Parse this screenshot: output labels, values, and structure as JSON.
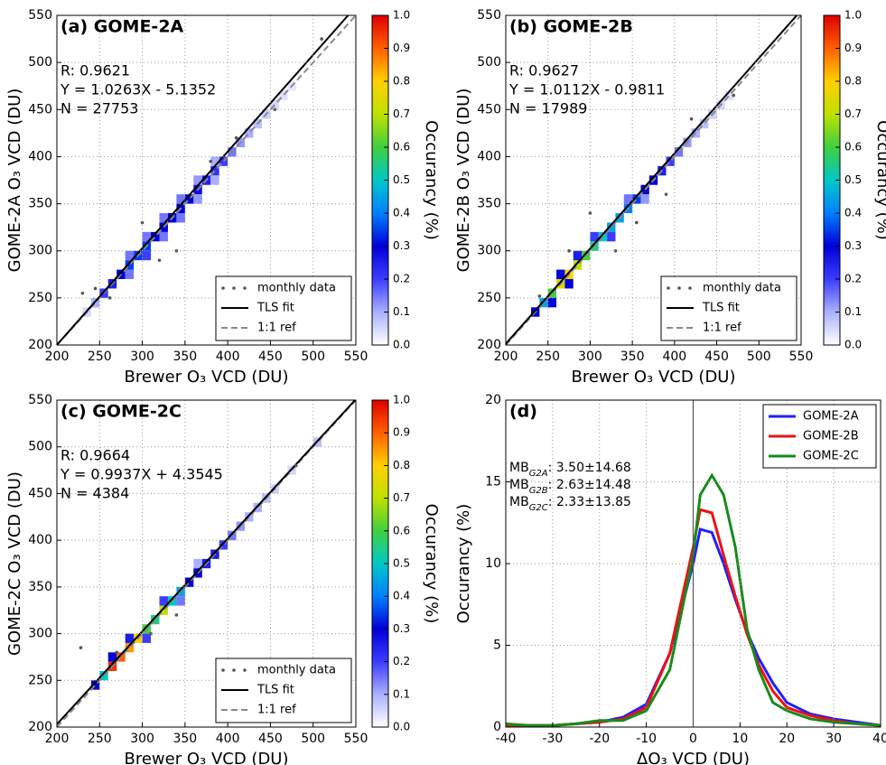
{
  "chart_data": [
    {
      "type": "density",
      "title": "(a) GOME-2A",
      "annotations": [
        "R: 0.9621",
        "Y = 1.0263X - 5.1352",
        "N = 27753"
      ],
      "xlabel": "Brewer O₃ VCD (DU)",
      "ylabel": "GOME-2A O₃ VCD (DU)",
      "xlim": [
        200,
        550
      ],
      "ylim": [
        200,
        550
      ],
      "xticks": [
        200,
        250,
        300,
        350,
        400,
        450,
        500,
        550
      ],
      "yticks": [
        200,
        250,
        300,
        350,
        400,
        450,
        500,
        550
      ],
      "grid": true,
      "legend": "lower right",
      "density": {
        "x": [
          235,
          245,
          255,
          265,
          275,
          285,
          295,
          305,
          315,
          325,
          335,
          345,
          355,
          365,
          375,
          385,
          395,
          405,
          415,
          425,
          435,
          445,
          455,
          465,
          475,
          285,
          285,
          305,
          305,
          325,
          325,
          345,
          345,
          365,
          365,
          385,
          385
        ],
        "y": [
          235,
          245,
          255,
          265,
          275,
          285,
          295,
          305,
          315,
          325,
          335,
          345,
          355,
          365,
          375,
          385,
          395,
          405,
          415,
          425,
          435,
          445,
          455,
          465,
          475,
          275,
          295,
          295,
          315,
          315,
          335,
          335,
          355,
          355,
          375,
          375,
          395
        ],
        "values": [
          0.05,
          0.1,
          0.2,
          0.25,
          0.3,
          0.35,
          0.35,
          0.35,
          0.3,
          0.3,
          0.3,
          0.3,
          0.3,
          0.28,
          0.25,
          0.22,
          0.2,
          0.15,
          0.12,
          0.1,
          0.08,
          0.06,
          0.05,
          0.04,
          0.03,
          0.15,
          0.15,
          0.2,
          0.15,
          0.15,
          0.15,
          0.15,
          0.15,
          0.12,
          0.12,
          0.1,
          0.1
        ]
      },
      "series": [
        {
          "name": "monthly data",
          "color": "#555555",
          "x": [
            245,
            262,
            300,
            320,
            380,
            410,
            455,
            510,
            230,
            340
          ],
          "values": [
            260,
            250,
            330,
            290,
            395,
            420,
            450,
            525,
            255,
            300
          ]
        },
        {
          "name": "TLS fit",
          "color": "#000000",
          "slope": 1.0263,
          "intercept": -5.1352
        },
        {
          "name": "1:1 ref",
          "color": "#888888"
        }
      ],
      "colorbar": {
        "label": "Occurancy (%)",
        "lim": [
          0,
          1
        ],
        "ticks": [
          {
            "value": 0,
            "label": "0.0"
          },
          0.1,
          0.2,
          0.3,
          0.4,
          0.5,
          0.6,
          0.7,
          0.8,
          0.9,
          {
            "value": 1,
            "label": "1.0"
          }
        ],
        "colors": [
          "#ffffff",
          "#aab0ff",
          "#3c3cff",
          "#0000d8",
          "#0080ff",
          "#00c8c8",
          "#40d040",
          "#c0e000",
          "#ffd000",
          "#ff6000",
          "#e00000"
        ]
      }
    },
    {
      "type": "density",
      "title": "(b) GOME-2B",
      "annotations": [
        "R: 0.9627",
        "Y = 1.0112X - 0.9811",
        "N = 17989"
      ],
      "xlabel": "Brewer O₃ VCD (DU)",
      "ylabel": "GOME-2B O₃ VCD (DU)",
      "xlim": [
        200,
        550
      ],
      "ylim": [
        200,
        550
      ],
      "xticks": [
        200,
        250,
        300,
        350,
        400,
        450,
        500,
        550
      ],
      "yticks": [
        200,
        250,
        300,
        350,
        400,
        450,
        500,
        550
      ],
      "grid": true,
      "legend": "lower right",
      "density": {
        "x": [
          235,
          245,
          255,
          265,
          275,
          285,
          295,
          305,
          315,
          325,
          335,
          345,
          355,
          365,
          375,
          385,
          395,
          405,
          415,
          425,
          435,
          445,
          455,
          465,
          255,
          265,
          275,
          285,
          305,
          325,
          345,
          365
        ],
        "y": [
          235,
          245,
          255,
          265,
          275,
          285,
          295,
          305,
          315,
          325,
          335,
          345,
          355,
          365,
          375,
          385,
          395,
          405,
          415,
          425,
          435,
          445,
          455,
          465,
          245,
          275,
          265,
          295,
          315,
          315,
          355,
          355
        ],
        "values": [
          0.3,
          0.45,
          0.6,
          0.75,
          0.8,
          0.7,
          0.6,
          0.55,
          0.5,
          0.45,
          0.45,
          0.4,
          0.35,
          0.3,
          0.3,
          0.25,
          0.2,
          0.15,
          0.12,
          0.1,
          0.08,
          0.06,
          0.05,
          0.04,
          0.3,
          0.3,
          0.3,
          0.25,
          0.2,
          0.2,
          0.15,
          0.12
        ]
      },
      "series": [
        {
          "name": "monthly data",
          "color": "#555555",
          "x": [
            240,
            275,
            300,
            330,
            355,
            390,
            420,
            470
          ],
          "values": [
            252,
            300,
            340,
            300,
            330,
            360,
            440,
            465
          ]
        },
        {
          "name": "TLS fit",
          "color": "#000000",
          "slope": 1.0112,
          "intercept": -0.9811
        },
        {
          "name": "1:1 ref",
          "color": "#888888"
        }
      ],
      "colorbar": {
        "label": "Occurancy (%)",
        "lim": [
          0,
          1
        ],
        "ticks": [
          {
            "value": 0,
            "label": "0.0"
          },
          0.1,
          0.2,
          0.3,
          0.4,
          0.5,
          0.6,
          0.7,
          0.8,
          0.9,
          {
            "value": 1,
            "label": "1.0"
          }
        ],
        "colors": [
          "#ffffff",
          "#aab0ff",
          "#3c3cff",
          "#0000d8",
          "#0080ff",
          "#00c8c8",
          "#40d040",
          "#c0e000",
          "#ffd000",
          "#ff6000",
          "#e00000"
        ]
      }
    },
    {
      "type": "density",
      "title": "(c) GOME-2C",
      "annotations": [
        "R: 0.9664",
        "Y = 0.9937X + 4.3545",
        "N = 4384"
      ],
      "xlabel": "Brewer O₃ VCD (DU)",
      "ylabel": "GOME-2C O₃ VCD (DU)",
      "xlim": [
        200,
        550
      ],
      "ylim": [
        200,
        550
      ],
      "xticks": [
        200,
        250,
        300,
        350,
        400,
        450,
        500,
        550
      ],
      "yticks": [
        200,
        250,
        300,
        350,
        400,
        450,
        500,
        550
      ],
      "grid": true,
      "legend": "lower right",
      "density": {
        "x": [
          245,
          255,
          265,
          275,
          285,
          295,
          305,
          315,
          325,
          335,
          345,
          355,
          365,
          375,
          385,
          395,
          405,
          415,
          425,
          435,
          445,
          455,
          475,
          505,
          265,
          285,
          305,
          325,
          345,
          365
        ],
        "y": [
          245,
          255,
          265,
          275,
          285,
          295,
          305,
          315,
          325,
          335,
          345,
          355,
          365,
          375,
          385,
          395,
          405,
          415,
          425,
          435,
          445,
          455,
          475,
          505,
          275,
          295,
          295,
          335,
          335,
          375
        ],
        "values": [
          0.3,
          0.5,
          0.95,
          0.9,
          0.85,
          0.8,
          0.6,
          0.55,
          0.7,
          0.5,
          0.45,
          0.3,
          0.3,
          0.25,
          0.25,
          0.2,
          0.15,
          0.12,
          0.1,
          0.1,
          0.08,
          0.06,
          0.05,
          0.08,
          0.3,
          0.25,
          0.2,
          0.2,
          0.15,
          0.1
        ]
      },
      "series": [
        {
          "name": "monthly data",
          "color": "#555555",
          "x": [
            228,
            270,
            310,
            340,
            480
          ],
          "values": [
            285,
            280,
            300,
            320,
            480
          ]
        },
        {
          "name": "TLS fit",
          "color": "#000000",
          "slope": 0.9937,
          "intercept": 4.3545
        },
        {
          "name": "1:1 ref",
          "color": "#888888"
        }
      ],
      "colorbar": {
        "label": "Occurancy (%)",
        "lim": [
          0,
          1
        ],
        "ticks": [
          {
            "value": 0,
            "label": "0.0"
          },
          0.1,
          0.2,
          0.3,
          0.4,
          0.5,
          0.6,
          0.7,
          0.8,
          0.9,
          {
            "value": 1,
            "label": "1.0"
          }
        ],
        "colors": [
          "#ffffff",
          "#aab0ff",
          "#3c3cff",
          "#0000d8",
          "#0080ff",
          "#00c8c8",
          "#40d040",
          "#c0e000",
          "#ffd000",
          "#ff6000",
          "#e00000"
        ]
      }
    },
    {
      "type": "line",
      "title": "(d)",
      "xlabel": "ΔO₃ VCD (DU)",
      "ylabel": "Occurancy (%)",
      "xlim": [
        -40,
        40
      ],
      "ylim": [
        0,
        20
      ],
      "xticks": [
        -40,
        -30,
        -20,
        -10,
        0,
        10,
        20,
        30,
        40
      ],
      "yticks": [
        0,
        5,
        10,
        15,
        20
      ],
      "grid": true,
      "legend": "upper right",
      "vline": 0,
      "annotations": [
        {
          "prefix": "MB",
          "sub": "G2A",
          "text": ": 3.50±14.68"
        },
        {
          "prefix": "MB",
          "sub": "G2B",
          "text": ": 2.63±14.48"
        },
        {
          "prefix": "MB",
          "sub": "G2C",
          "text": ": 2.33±13.85"
        }
      ],
      "x": [
        -40,
        -35,
        -30,
        -25,
        -20,
        -15,
        -10,
        -5,
        0,
        1.5,
        4,
        6.5,
        9,
        11.5,
        14,
        17,
        20,
        25,
        30,
        35,
        40
      ],
      "series": [
        {
          "name": "GOME-2A",
          "color": "#1f1fff",
          "values": [
            0.1,
            0.1,
            0.1,
            0.2,
            0.3,
            0.6,
            1.4,
            4.5,
            10.0,
            12.1,
            11.9,
            10.0,
            7.8,
            5.8,
            4.2,
            2.7,
            1.5,
            0.8,
            0.5,
            0.3,
            0.1
          ]
        },
        {
          "name": "GOME-2B",
          "color": "#ee1111",
          "values": [
            0.1,
            0.1,
            0.1,
            0.2,
            0.3,
            0.5,
            1.2,
            4.5,
            11.0,
            13.3,
            13.1,
            10.5,
            8.0,
            5.7,
            3.8,
            2.2,
            1.2,
            0.7,
            0.4,
            0.2,
            0.1
          ]
        },
        {
          "name": "GOME-2C",
          "color": "#1a8a1a",
          "values": [
            0.2,
            0.1,
            0.1,
            0.2,
            0.4,
            0.4,
            1.0,
            3.5,
            10.5,
            14.2,
            15.4,
            14.2,
            11.0,
            6.0,
            3.5,
            1.5,
            1.0,
            0.5,
            0.3,
            0.2,
            0.1
          ]
        }
      ]
    }
  ]
}
